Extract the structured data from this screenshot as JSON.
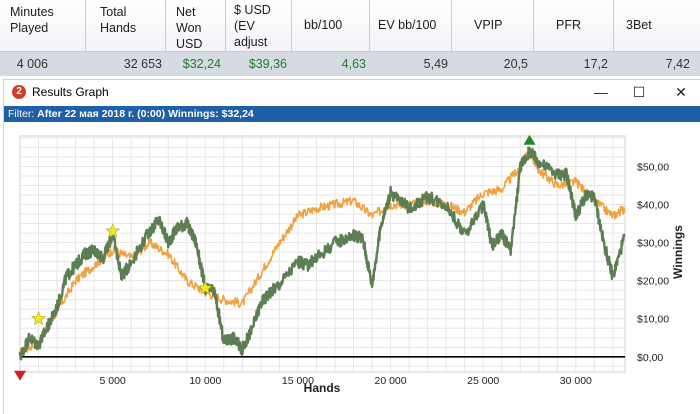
{
  "stats": {
    "headers": [
      "Minutes\nPlayed",
      "Total\nHands",
      "Net\nWon\nUSD",
      "$ USD\n(EV\nadjust",
      "bb/100",
      "EV bb/100",
      "VPIP",
      "PFR",
      "3Bet"
    ],
    "values": [
      "4 006",
      "32 653",
      "$32,24",
      "$39,36",
      "4,63",
      "5,49",
      "20,5",
      "17,2",
      "7,42"
    ]
  },
  "window": {
    "title": "Results Graph",
    "icon": "pokertracker-icon",
    "minimize": "—",
    "maximize": "☐",
    "close": "✕"
  },
  "filter": {
    "prefix": "Filter:",
    "text": "After 22 мая 2018 г. (0:00)",
    "winnings_label": "Winnings:",
    "winnings_value": "$32,24",
    "bg": "#1f5fa5"
  },
  "chart_data": {
    "type": "line",
    "xlabel": "Hands",
    "ylabel": "Winnings",
    "xlim": [
      0,
      32653
    ],
    "ylim": [
      -4,
      58
    ],
    "x_ticks": [
      5000,
      10000,
      15000,
      20000,
      25000,
      30000
    ],
    "x_tick_labels": [
      "5 000",
      "10 000",
      "15 000",
      "20 000",
      "25 000",
      "30 000"
    ],
    "y_ticks": [
      0,
      10,
      20,
      30,
      40,
      50
    ],
    "y_tick_labels": [
      "$0,00",
      "$10,00",
      "$20,00",
      "$30,00",
      "$40,00",
      "$50,00"
    ],
    "grid": true,
    "series": [
      {
        "color": "#f2a040",
        "x": [
          0,
          1000,
          2000,
          3000,
          4000,
          5000,
          6000,
          7000,
          8000,
          9000,
          10000,
          11000,
          12000,
          13000,
          14000,
          15000,
          16000,
          17000,
          18000,
          19000,
          20000,
          21000,
          22000,
          23000,
          24000,
          25000,
          26000,
          27000,
          27500,
          28000,
          29000,
          30000,
          31000,
          32000,
          32653
        ],
        "y": [
          1,
          4,
          12,
          20,
          24,
          28,
          26,
          30,
          27,
          20,
          17,
          15,
          14,
          22,
          30,
          37,
          39,
          40,
          41,
          37,
          40,
          40,
          41,
          40,
          38,
          43,
          44,
          50,
          54,
          49,
          45,
          46,
          41,
          37,
          39
        ]
      },
      {
        "color": "#5b7f52",
        "x": [
          0,
          500,
          1000,
          1500,
          2000,
          2500,
          3000,
          3500,
          4000,
          4500,
          5000,
          5500,
          6000,
          7000,
          7500,
          8000,
          8500,
          9000,
          9500,
          10000,
          10500,
          11000,
          11500,
          12000,
          12500,
          13000,
          13500,
          14000,
          15000,
          15500,
          16000,
          17000,
          18000,
          18500,
          19000,
          19500,
          20000,
          21000,
          22000,
          23000,
          24000,
          25000,
          25500,
          26000,
          26500,
          27000,
          27500,
          28000,
          29000,
          29500,
          30000,
          30500,
          31000,
          31500,
          32000,
          32653
        ],
        "y": [
          0,
          5,
          3,
          8,
          13,
          21,
          24,
          27,
          28,
          26,
          32,
          21,
          25,
          33,
          36,
          30,
          34,
          35,
          30,
          18,
          17,
          4,
          5,
          2,
          7,
          14,
          17,
          19,
          25,
          24,
          26,
          30,
          32,
          31,
          19,
          35,
          43,
          39,
          42,
          40,
          32,
          40,
          29,
          32,
          28,
          50,
          54,
          51,
          48,
          48,
          37,
          42,
          42,
          30,
          21,
          32
        ]
      }
    ],
    "markers": [
      {
        "x": 0,
        "y": -5,
        "shape": "triangle-down",
        "color": "#d21f1f"
      },
      {
        "x": 1000,
        "y": 10,
        "shape": "star",
        "color": "#f3e72a"
      },
      {
        "x": 5000,
        "y": 33,
        "shape": "star",
        "color": "#f3e72a"
      },
      {
        "x": 10000,
        "y": 18,
        "shape": "star",
        "color": "#f3e72a"
      },
      {
        "x": 27500,
        "y": 57,
        "shape": "triangle-up",
        "color": "#1f8a2a"
      }
    ]
  }
}
